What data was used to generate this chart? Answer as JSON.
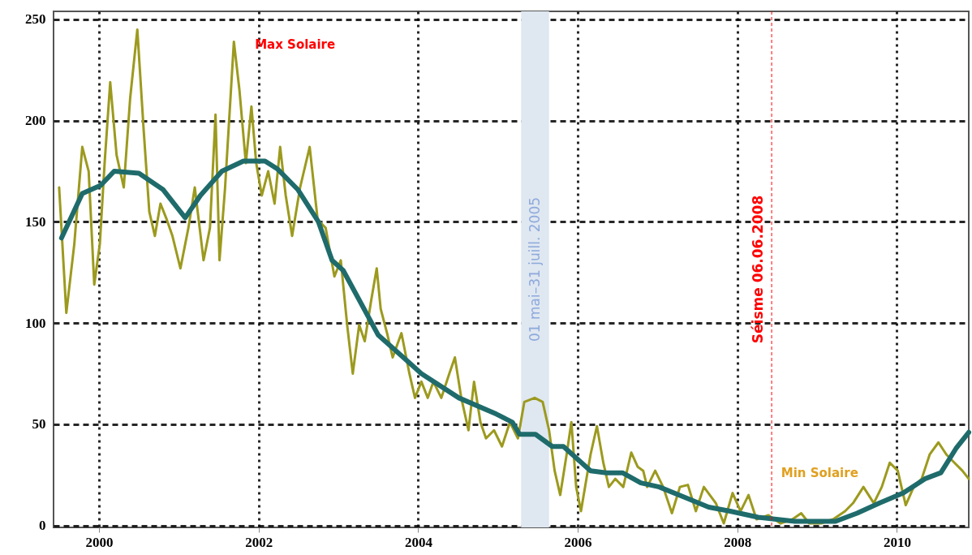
{
  "chart_data": {
    "type": "line",
    "xlim": [
      1999.43,
      2010.9
    ],
    "xticks": [
      2000,
      2002,
      2004,
      2006,
      2008,
      2010
    ],
    "ylim": [
      -1,
      254
    ],
    "yticks": [
      0,
      50,
      100,
      150,
      200,
      250
    ],
    "grid": true,
    "marker": "none",
    "series": [
      {
        "color": "#9c9a1e",
        "x": [
          1999.5,
          1999.59,
          1999.69,
          1999.79,
          1999.87,
          1999.94,
          2000.01,
          2000.07,
          2000.14,
          2000.22,
          2000.31,
          2000.39,
          2000.48,
          2000.56,
          2000.63,
          2000.7,
          2000.77,
          2000.85,
          2000.92,
          2001.02,
          2001.12,
          2001.2,
          2001.31,
          2001.39,
          2001.46,
          2001.51,
          2001.58,
          2001.69,
          2001.76,
          2001.84,
          2001.91,
          2001.97,
          2002.04,
          2002.12,
          2002.2,
          2002.27,
          2002.34,
          2002.42,
          2002.52,
          2002.64,
          2002.74,
          2002.84,
          2002.95,
          2003.03,
          2003.11,
          2003.18,
          2003.26,
          2003.33,
          2003.41,
          2003.48,
          2003.53,
          2003.61,
          2003.68,
          2003.79,
          2003.89,
          2003.96,
          2004.04,
          2004.12,
          2004.19,
          2004.29,
          2004.39,
          2004.46,
          2004.54,
          2004.63,
          2004.7,
          2004.78,
          2004.85,
          2004.95,
          2005.05,
          2005.15,
          2005.25,
          2005.33,
          2005.46,
          2005.56,
          2005.64,
          2005.71,
          2005.78,
          2005.86,
          2005.92,
          2005.98,
          2006.04,
          2006.16,
          2006.24,
          2006.32,
          2006.39,
          2006.47,
          2006.57,
          2006.67,
          2006.75,
          2006.82,
          2006.87,
          2006.97,
          2007.07,
          2007.18,
          2007.28,
          2007.38,
          2007.48,
          2007.58,
          2007.73,
          2007.83,
          2007.94,
          2008.04,
          2008.14,
          2008.24,
          2008.39,
          2008.54,
          2008.69,
          2008.8,
          2008.9,
          2009.05,
          2009.2,
          2009.35,
          2009.45,
          2009.58,
          2009.71,
          2009.81,
          2009.91,
          2010.01,
          2010.11,
          2010.21,
          2010.31,
          2010.41,
          2010.52,
          2010.62,
          2010.72,
          2010.82,
          2010.9
        ],
        "values": [
          167,
          105,
          139,
          187,
          175,
          119,
          139,
          179,
          219,
          183,
          167,
          211,
          245,
          195,
          155,
          143,
          159,
          151,
          143,
          127,
          147,
          167,
          131,
          147,
          203,
          131,
          167,
          239,
          215,
          179,
          207,
          179,
          163,
          175,
          159,
          187,
          163,
          143,
          167,
          187,
          151,
          147,
          123,
          131,
          99,
          75,
          99,
          91,
          111,
          127,
          107,
          95,
          83,
          95,
          75,
          63,
          71,
          63,
          71,
          63,
          75,
          83,
          63,
          47,
          71,
          51,
          43,
          47,
          39,
          51,
          43,
          61,
          63,
          61,
          47,
          27,
          15,
          35,
          51,
          19,
          7,
          35,
          49,
          31,
          19,
          23,
          19,
          36,
          29,
          27,
          19,
          27,
          19,
          6,
          19,
          20,
          7,
          19,
          11,
          1,
          16,
          7,
          15,
          3,
          5,
          1,
          3,
          6,
          1,
          1,
          3,
          7,
          11,
          19,
          11,
          19,
          31,
          27,
          10,
          19,
          23,
          35,
          41,
          35,
          31,
          27,
          23
        ]
      },
      {
        "color": "#1f6b6b",
        "x": [
          1999.53,
          1999.79,
          2000.02,
          2000.19,
          2000.5,
          2000.8,
          2001.08,
          2001.27,
          2001.54,
          2001.81,
          2002.08,
          2002.24,
          2002.49,
          2002.75,
          2002.92,
          2003.06,
          2003.5,
          2004.04,
          2004.51,
          2004.98,
          2005.18,
          2005.27,
          2005.47,
          2005.68,
          2005.82,
          2006.16,
          2006.36,
          2006.56,
          2006.79,
          2007.02,
          2007.33,
          2007.64,
          2007.91,
          2008.26,
          2008.72,
          2009.23,
          2009.5,
          2009.78,
          2010.08,
          2010.35,
          2010.55,
          2010.74,
          2010.9
        ],
        "values": [
          142,
          164,
          168,
          175,
          174,
          166,
          152,
          163,
          175,
          180,
          180,
          176,
          166,
          150,
          131,
          126,
          94,
          75,
          63,
          55,
          51,
          45,
          45,
          39,
          39,
          27,
          26,
          26,
          21,
          19,
          14,
          9,
          7,
          4,
          2,
          2,
          6,
          11,
          16,
          23,
          26,
          38,
          46
        ]
      }
    ],
    "ref_lines": [
      {
        "axis": "x",
        "value": 2008.43,
        "label": "Séisme 06.06.2008",
        "color": "#ff0000",
        "line_style": "dashed"
      }
    ],
    "bands": [
      {
        "axis": "x",
        "from": 2005.29,
        "to": 2005.64,
        "label": "01 mai–31 juill. 2005",
        "color": "#dfe7f1"
      }
    ],
    "annotations": [
      "Max Solaire",
      "Min Solaire"
    ]
  }
}
